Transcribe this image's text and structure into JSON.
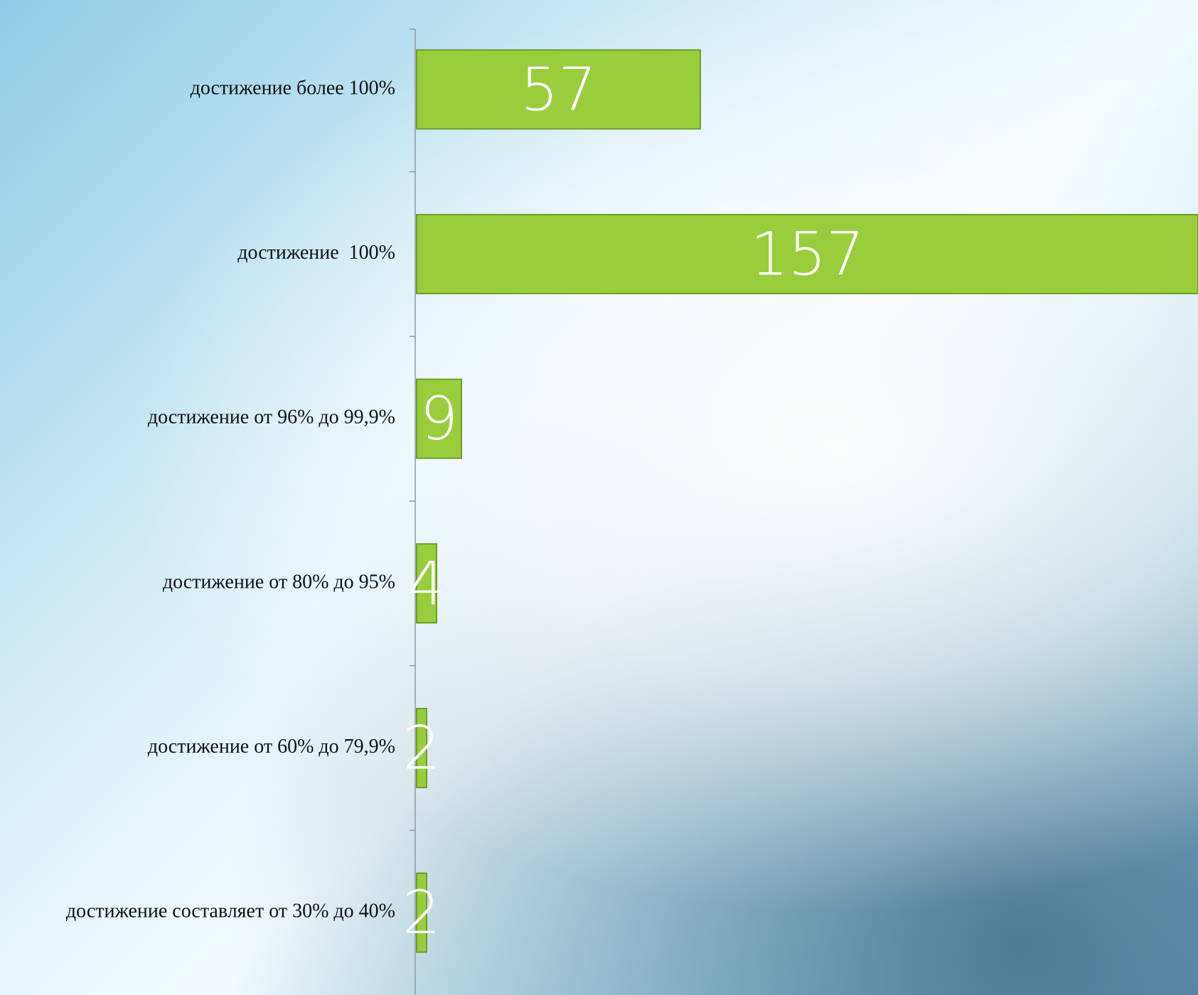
{
  "chart_data": {
    "type": "bar",
    "orientation": "horizontal",
    "categories": [
      "достижение более 100%",
      "достижение  100%",
      "достижение от 96% до 99,9%",
      "достижение от 80% до 95%",
      "достижение от 60% до 79,9%",
      "достижение составляет от 30% до 40%"
    ],
    "values": [
      57,
      157,
      9,
      4,
      2,
      2
    ],
    "color": "#9acd3c"
  }
}
